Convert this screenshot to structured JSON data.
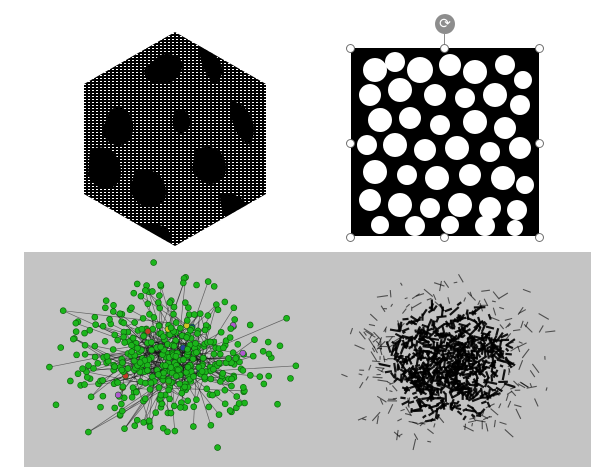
{
  "document": {
    "figures": [
      {
        "name": "hexagonal-cube-pattern",
        "fill": "#000000",
        "pattern": "#ffffff"
      },
      {
        "name": "square-porous-cutout",
        "fill": "#000000",
        "blob_color": "#ffffff",
        "selected": true
      },
      {
        "name": "green-network-scatter",
        "node_color": "#19b219",
        "background": "#c4c4c4"
      },
      {
        "name": "black-network-rendering",
        "edge_color": "#000000",
        "background": "#c4c4c4"
      }
    ],
    "selection": {
      "rotate_icon": "rotate-arrow-icon",
      "rotate_glyph": "⟳",
      "handle_color": "#ffffff",
      "handle_border": "#6e6e6e"
    },
    "panel_color": "#c4c4c4"
  }
}
